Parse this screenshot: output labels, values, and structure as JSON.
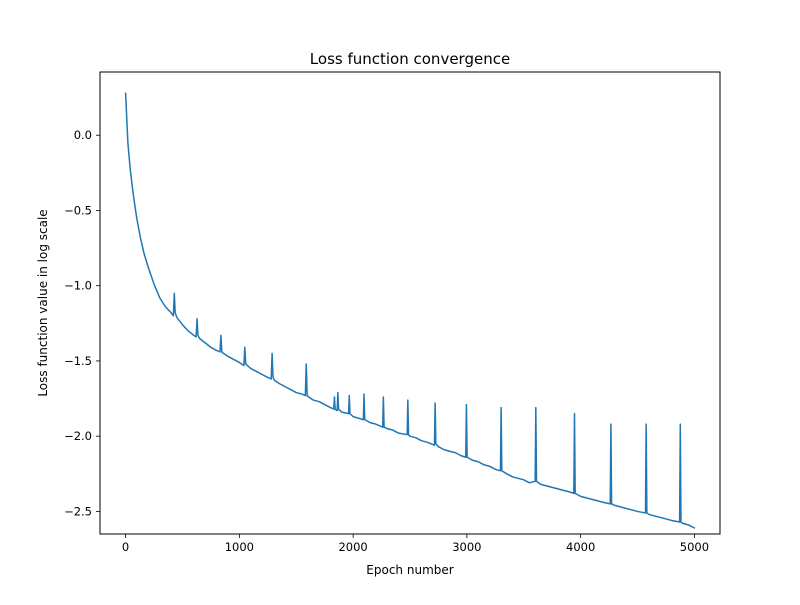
{
  "chart_data": {
    "type": "line",
    "title": "Loss function convergence",
    "xlabel": "Epoch number",
    "ylabel": "Loss function value in log scale",
    "xlim": [
      -225,
      5225
    ],
    "ylim": [
      -2.65,
      0.42
    ],
    "xticks": [
      0,
      1000,
      2000,
      3000,
      4000,
      5000
    ],
    "yticks": [
      0.0,
      -0.5,
      -1.0,
      -1.5,
      -2.0,
      -2.5
    ],
    "xtick_labels": [
      "0",
      "1000",
      "2000",
      "3000",
      "4000",
      "5000"
    ],
    "ytick_labels": [
      "0.0",
      "−0.5",
      "−1.0",
      "−1.5",
      "−2.0",
      "−2.5"
    ],
    "grid": false,
    "line_color": "#1f77b4",
    "series": [
      {
        "x": [
          0,
          20,
          40,
          60,
          80,
          100,
          130,
          160,
          200,
          250,
          300,
          350,
          400,
          420,
          428,
          436,
          450,
          500,
          550,
          600,
          620,
          628,
          636,
          650,
          700,
          750,
          800,
          830,
          838,
          846,
          860,
          900,
          950,
          1000,
          1040,
          1048,
          1056,
          1070,
          1100,
          1150,
          1200,
          1250,
          1280,
          1288,
          1296,
          1310,
          1350,
          1400,
          1450,
          1500,
          1550,
          1580,
          1588,
          1596,
          1610,
          1650,
          1700,
          1750,
          1800,
          1830,
          1836,
          1842,
          1860,
          1866,
          1872,
          1900,
          1960,
          1966,
          1972,
          2000,
          2090,
          2096,
          2102,
          2150,
          2200,
          2260,
          2266,
          2272,
          2300,
          2350,
          2400,
          2475,
          2481,
          2487,
          2500,
          2550,
          2600,
          2650,
          2715,
          2721,
          2727,
          2750,
          2800,
          2850,
          2900,
          2950,
          2990,
          2996,
          3002,
          3050,
          3100,
          3150,
          3200,
          3250,
          3295,
          3301,
          3307,
          3350,
          3400,
          3450,
          3500,
          3550,
          3600,
          3606,
          3612,
          3650,
          3700,
          3750,
          3800,
          3850,
          3900,
          3940,
          3946,
          3952,
          4000,
          4050,
          4100,
          4150,
          4200,
          4260,
          4266,
          4272,
          4300,
          4350,
          4400,
          4450,
          4500,
          4570,
          4576,
          4582,
          4600,
          4650,
          4700,
          4750,
          4800,
          4870,
          4876,
          4882,
          4900,
          4950,
          5000
        ],
        "y": [
          0.28,
          -0.05,
          -0.22,
          -0.35,
          -0.46,
          -0.56,
          -0.68,
          -0.78,
          -0.88,
          -0.99,
          -1.08,
          -1.14,
          -1.18,
          -1.2,
          -1.05,
          -1.18,
          -1.21,
          -1.26,
          -1.3,
          -1.33,
          -1.34,
          -1.22,
          -1.33,
          -1.35,
          -1.38,
          -1.41,
          -1.43,
          -1.44,
          -1.33,
          -1.44,
          -1.45,
          -1.47,
          -1.49,
          -1.51,
          -1.53,
          -1.41,
          -1.52,
          -1.53,
          -1.55,
          -1.57,
          -1.59,
          -1.61,
          -1.62,
          -1.45,
          -1.61,
          -1.63,
          -1.65,
          -1.67,
          -1.69,
          -1.71,
          -1.72,
          -1.73,
          -1.52,
          -1.73,
          -1.74,
          -1.76,
          -1.77,
          -1.79,
          -1.81,
          -1.82,
          -1.74,
          -1.82,
          -1.83,
          -1.71,
          -1.82,
          -1.84,
          -1.85,
          -1.73,
          -1.85,
          -1.87,
          -1.89,
          -1.72,
          -1.89,
          -1.91,
          -1.92,
          -1.94,
          -1.74,
          -1.94,
          -1.95,
          -1.96,
          -1.98,
          -1.99,
          -1.76,
          -1.99,
          -2.0,
          -2.01,
          -2.03,
          -2.04,
          -2.06,
          -1.78,
          -2.05,
          -2.07,
          -2.09,
          -2.1,
          -2.11,
          -2.13,
          -2.14,
          -1.79,
          -2.14,
          -2.16,
          -2.17,
          -2.19,
          -2.2,
          -2.22,
          -2.23,
          -1.81,
          -2.23,
          -2.25,
          -2.27,
          -2.28,
          -2.29,
          -2.31,
          -2.3,
          -1.81,
          -2.3,
          -2.32,
          -2.33,
          -2.34,
          -2.35,
          -2.36,
          -2.37,
          -2.38,
          -1.85,
          -2.38,
          -2.4,
          -2.41,
          -2.42,
          -2.43,
          -2.44,
          -2.45,
          -1.92,
          -2.45,
          -2.46,
          -2.47,
          -2.48,
          -2.49,
          -2.5,
          -2.51,
          -1.92,
          -2.51,
          -2.52,
          -2.53,
          -2.54,
          -2.55,
          -2.56,
          -2.57,
          -1.92,
          -2.57,
          -2.58,
          -2.59,
          -2.61
        ]
      }
    ]
  }
}
